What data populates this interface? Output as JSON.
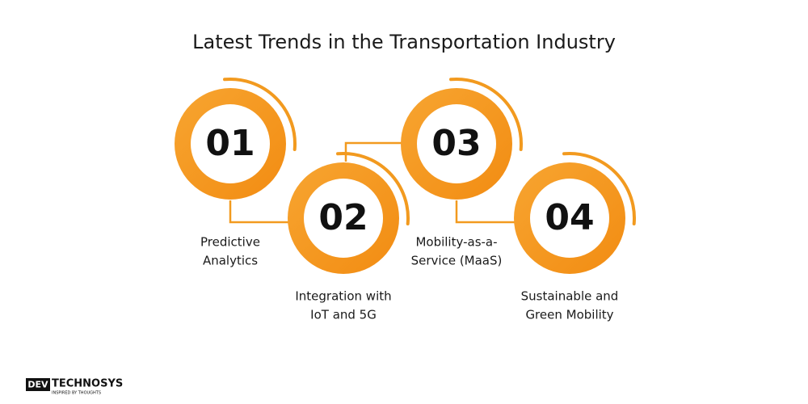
{
  "header": {
    "title": "Latest Trends in the Transportation Industry"
  },
  "steps": [
    {
      "number": "01",
      "label": [
        "Predictive",
        "Analytics"
      ]
    },
    {
      "number": "02",
      "label": [
        "Integration with",
        "IoT and 5G"
      ]
    },
    {
      "number": "03",
      "label": [
        "Mobility-as-a-",
        "Service (MaaS)"
      ]
    },
    {
      "number": "04",
      "label": [
        "Sustainable and",
        "Green Mobility"
      ]
    }
  ],
  "logo": {
    "brand_left": "DEV",
    "brand_right": "TECHNOSYS",
    "tagline": "INSPIRED BY THOUGHTS"
  }
}
